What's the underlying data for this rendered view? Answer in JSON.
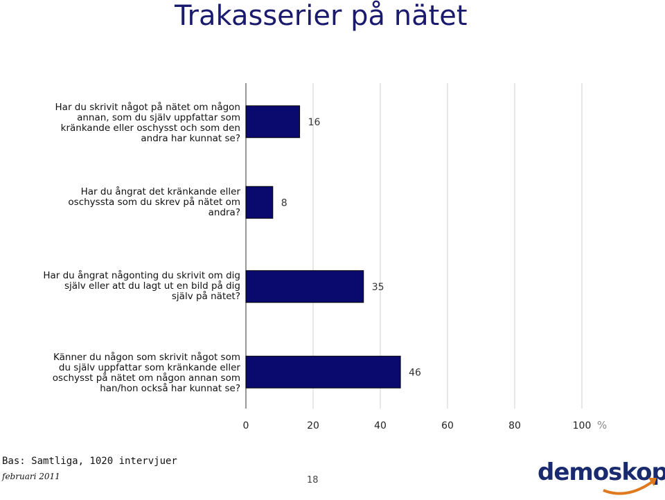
{
  "header": {
    "title": "Trakasserier på nätet"
  },
  "chart_data": {
    "type": "bar",
    "orientation": "horizontal",
    "categories": [
      "Har du skrivit något på nätet om någon annan, som du själv uppfattar som kränkande eller oschysst och som den andra har kunnat se?",
      "Har du ångrat det kränkande eller oschyssta som du skrev på nätet om andra?",
      "Har du ångrat någonting du skrivit om dig själv eller att du lagt ut en bild på dig själv på nätet?",
      "Känner du någon som skrivit något som du själv uppfattar som kränkande eller oschysst på nätet om någon annan som han/hon också har kunnat se?"
    ],
    "category_lines": [
      [
        "Har du skrivit något på nätet om någon",
        "annan, som du själv uppfattar som",
        "kränkande eller oschysst och som den",
        "andra har kunnat se?"
      ],
      [
        "Har du ångrat det kränkande eller",
        "oschyssta som du skrev på nätet om",
        "andra?"
      ],
      [
        "Har du ångrat någonting du skrivit om dig",
        "själv eller att du lagt ut en bild på dig",
        "själv på nätet?"
      ],
      [
        "Känner du någon som skrivit något som",
        "du själv uppfattar som kränkande eller",
        "oschysst på nätet om någon annan som",
        "han/hon också har kunnat se?"
      ]
    ],
    "values": [
      16,
      8,
      35,
      46
    ],
    "value_labels": [
      "16",
      "8",
      "35",
      "46"
    ],
    "xlim": [
      0,
      100
    ],
    "xticks": [
      "0",
      "20",
      "40",
      "60",
      "80",
      "100"
    ],
    "unit": "%",
    "grid": true,
    "bar_color": "#0a0a6e"
  },
  "footer": {
    "base": "Bas: Samtliga, 1020 intervjuer",
    "date": "februari 2011",
    "page": "18",
    "logo": "demoskop"
  }
}
